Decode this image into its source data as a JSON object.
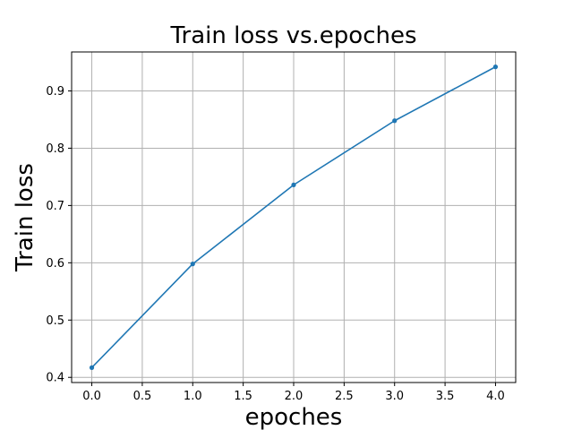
{
  "chart_data": {
    "type": "line",
    "title": "Train loss vs.epoches",
    "xlabel": "epoches",
    "ylabel": "Train loss",
    "x": [
      0,
      1,
      2,
      3,
      4
    ],
    "series": [
      {
        "values": [
          0.417,
          0.598,
          0.736,
          0.848,
          0.942
        ],
        "color": "#1f77b4",
        "marker": "dot"
      }
    ],
    "xlim": [
      -0.2,
      4.2
    ],
    "ylim": [
      0.391,
      0.968
    ],
    "xticks": [
      0.0,
      0.5,
      1.0,
      1.5,
      2.0,
      2.5,
      3.0,
      3.5,
      4.0
    ],
    "xtick_labels": [
      "0.0",
      "0.5",
      "1.0",
      "1.5",
      "2.0",
      "2.5",
      "3.0",
      "3.5",
      "4.0"
    ],
    "yticks": [
      0.4,
      0.5,
      0.6,
      0.7,
      0.8,
      0.9
    ],
    "ytick_labels": [
      "0.4",
      "0.5",
      "0.6",
      "0.7",
      "0.8",
      "0.9"
    ],
    "grid": true
  }
}
